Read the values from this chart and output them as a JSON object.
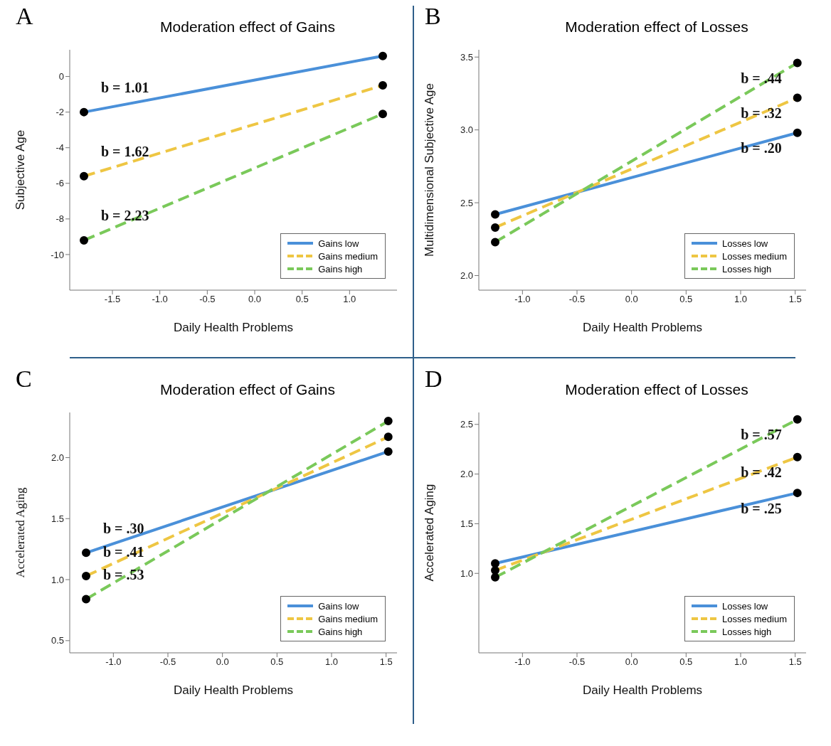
{
  "chart_data": [
    {
      "type": "line",
      "title": "Moderation effect of Gains",
      "xlabel": "Daily Health Problems",
      "ylabel": "Subjective Age",
      "xlim": [
        -1.95,
        1.5
      ],
      "xticks": [
        -1.5,
        {
          "value": -1,
          "label": "-1.0"
        },
        -0.5,
        {
          "value": 0,
          "label": "0.0"
        },
        0.5,
        {
          "value": 1,
          "label": "1.0"
        }
      ],
      "ylim": [
        -12,
        1.5
      ],
      "yticks": [
        -10,
        -8,
        -6,
        -4,
        -2,
        0
      ],
      "grid": false,
      "legend": "bottom right",
      "marker": "circle",
      "series": [
        {
          "name": "Gains low",
          "color": "#4a90d9",
          "line_style": "solid",
          "x": [
            -1.8,
            1.35
          ],
          "values": [
            -2.0,
            1.15
          ]
        },
        {
          "name": "Gains medium",
          "color": "#eec643",
          "line_style": "dashed",
          "x": [
            -1.8,
            1.35
          ],
          "values": [
            -5.6,
            -0.5
          ]
        },
        {
          "name": "Gains high",
          "color": "#7ac95a",
          "line_style": "dashed",
          "x": [
            -1.8,
            1.35
          ],
          "values": [
            -9.2,
            -2.1
          ]
        }
      ],
      "annotations": [
        "A",
        {
          "text": "b = 1.01",
          "x": -1.8,
          "y": -2.0
        },
        {
          "text": "b = 1.62",
          "x": -1.8,
          "y": -5.6
        },
        {
          "text": "b = 2.23",
          "x": -1.8,
          "y": -9.2
        }
      ]
    },
    {
      "type": "line",
      "title": "Moderation effect of Losses",
      "xlabel": "Daily Health Problems",
      "ylabel": "Multidimensional Subjective Age",
      "xlim": [
        -1.4,
        1.6
      ],
      "xticks": [
        {
          "value": -1,
          "label": "-1.0"
        },
        -0.5,
        {
          "value": 0,
          "label": "0.0"
        },
        0.5,
        {
          "value": 1,
          "label": "1.0"
        },
        1.5
      ],
      "ylim": [
        1.9,
        3.55
      ],
      "yticks": [
        {
          "value": 2,
          "label": "2.0"
        },
        2.5,
        {
          "value": 3,
          "label": "3.0"
        },
        3.5
      ],
      "grid": false,
      "legend": "bottom right",
      "marker": "circle",
      "series": [
        {
          "name": "Losses low",
          "color": "#4a90d9",
          "line_style": "solid",
          "x": [
            -1.25,
            1.52
          ],
          "values": [
            2.42,
            2.98
          ]
        },
        {
          "name": "Losses medium",
          "color": "#eec643",
          "line_style": "dashed",
          "x": [
            -1.25,
            1.52
          ],
          "values": [
            2.33,
            3.22
          ]
        },
        {
          "name": "Losses high",
          "color": "#7ac95a",
          "line_style": "dashed",
          "x": [
            -1.25,
            1.52
          ],
          "values": [
            2.23,
            3.46
          ]
        }
      ],
      "annotations": [
        "B",
        {
          "text": "b = .44",
          "x": 1.52,
          "y": 3.46
        },
        {
          "text": "b = .32",
          "x": 1.52,
          "y": 3.22
        },
        {
          "text": "b = .20",
          "x": 1.52,
          "y": 2.98
        }
      ]
    },
    {
      "type": "line",
      "title": "Moderation effect of Gains",
      "xlabel": "Daily Health Problems",
      "ylabel": "Accelerated Aging",
      "xlim": [
        -1.4,
        1.6
      ],
      "xticks": [
        {
          "value": -1,
          "label": "-1.0"
        },
        -0.5,
        {
          "value": 0,
          "label": "0.0"
        },
        0.5,
        {
          "value": 1,
          "label": "1.0"
        },
        1.5
      ],
      "ylim": [
        0.4,
        2.37
      ],
      "yticks": [
        0.5,
        {
          "value": 1,
          "label": "1.0"
        },
        1.5,
        {
          "value": 2,
          "label": "2.0"
        }
      ],
      "grid": false,
      "legend": "bottom right",
      "marker": "circle",
      "series": [
        {
          "name": "Gains low",
          "color": "#4a90d9",
          "line_style": "solid",
          "x": [
            -1.25,
            1.52
          ],
          "values": [
            1.22,
            2.05
          ]
        },
        {
          "name": "Gains medium",
          "color": "#eec643",
          "line_style": "dashed",
          "x": [
            -1.25,
            1.52
          ],
          "values": [
            1.03,
            2.17
          ]
        },
        {
          "name": "Gains high",
          "color": "#7ac95a",
          "line_style": "dashed",
          "x": [
            -1.25,
            1.52
          ],
          "values": [
            0.84,
            2.3
          ]
        }
      ],
      "annotations": [
        "C",
        {
          "text": "b = .30",
          "x": -1.25,
          "y": 1.22
        },
        {
          "text": "b = .41",
          "x": -1.25,
          "y": 1.03
        },
        {
          "text": "b = .53",
          "x": -1.25,
          "y": 0.84
        }
      ]
    },
    {
      "type": "line",
      "title": "Moderation effect of Losses",
      "xlabel": "Daily Health Problems",
      "ylabel": "Accelerated Aging",
      "xlim": [
        -1.4,
        1.6
      ],
      "xticks": [
        {
          "value": -1,
          "label": "-1.0"
        },
        -0.5,
        {
          "value": 0,
          "label": "0.0"
        },
        0.5,
        {
          "value": 1,
          "label": "1.0"
        },
        1.5
      ],
      "ylim": [
        0.2,
        2.62
      ],
      "yticks": [
        {
          "value": 1,
          "label": "1.0"
        },
        1.5,
        {
          "value": 2,
          "label": "2.0"
        },
        2.5
      ],
      "grid": false,
      "legend": "bottom right",
      "marker": "circle",
      "series": [
        {
          "name": "Losses low",
          "color": "#4a90d9",
          "line_style": "solid",
          "x": [
            -1.25,
            1.52
          ],
          "values": [
            1.1,
            1.81
          ]
        },
        {
          "name": "Losses medium",
          "color": "#eec643",
          "line_style": "dashed",
          "x": [
            -1.25,
            1.52
          ],
          "values": [
            1.03,
            2.17
          ]
        },
        {
          "name": "Losses high",
          "color": "#7ac95a",
          "line_style": "dashed",
          "x": [
            -1.25,
            1.52
          ],
          "values": [
            0.96,
            2.55
          ]
        }
      ],
      "annotations": [
        "D",
        {
          "text": "b = .57",
          "x": 1.52,
          "y": 2.55
        },
        {
          "text": "b = .42",
          "x": 1.52,
          "y": 2.17
        },
        {
          "text": "b = .25",
          "x": 1.52,
          "y": 1.81
        }
      ]
    }
  ]
}
